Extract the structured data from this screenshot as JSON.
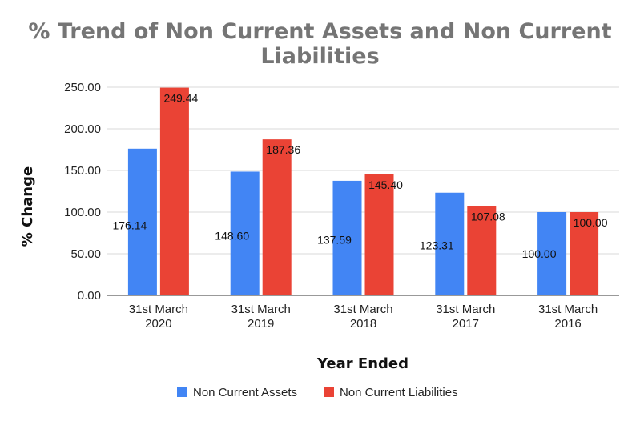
{
  "chart_data": {
    "type": "bar",
    "title_lines": [
      "% Trend of Non Current Assets and Non Current",
      "Liabilities"
    ],
    "xlabel": "Year Ended",
    "ylabel": "% Change",
    "categories": [
      [
        "31st March",
        "2020"
      ],
      [
        "31st March",
        "2019"
      ],
      [
        "31st March",
        "2018"
      ],
      [
        "31st March",
        "2017"
      ],
      [
        "31st March",
        "2016"
      ]
    ],
    "series": [
      {
        "name": "Non Current Assets",
        "color": "#4285F4",
        "values": [
          176.14,
          148.6,
          137.59,
          123.31,
          100.0
        ],
        "labels": [
          "176.14",
          "148.60",
          "137.59",
          "123.31",
          "100.00"
        ]
      },
      {
        "name": "Non Current Liabilities",
        "color": "#EA4335",
        "values": [
          249.44,
          187.36,
          145.4,
          107.08,
          100.0
        ],
        "labels": [
          "249.44",
          "187.36",
          "145.40",
          "107.08",
          "100.00"
        ]
      }
    ],
    "ylim": [
      0,
      250
    ],
    "yticks": [
      "0.00",
      "50.00",
      "100.00",
      "150.00",
      "200.00",
      "250.00"
    ],
    "grid": true,
    "legend_position": "bottom"
  }
}
